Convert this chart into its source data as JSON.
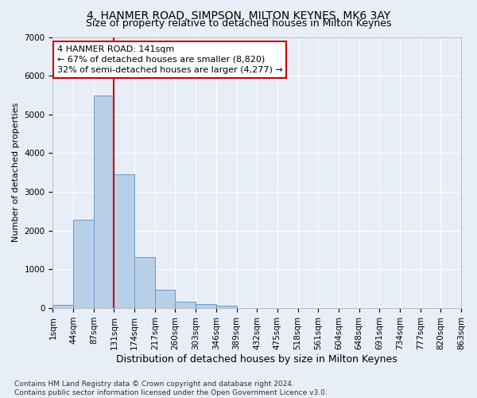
{
  "title": "4, HANMER ROAD, SIMPSON, MILTON KEYNES, MK6 3AY",
  "subtitle": "Size of property relative to detached houses in Milton Keynes",
  "xlabel": "Distribution of detached houses by size in Milton Keynes",
  "ylabel": "Number of detached properties",
  "bar_color": "#b8cfe8",
  "bar_edge_color": "#6699cc",
  "bar_values": [
    80,
    2280,
    5480,
    3450,
    1320,
    470,
    160,
    100,
    60,
    0,
    0,
    0,
    0,
    0,
    0,
    0,
    0,
    0,
    0,
    0
  ],
  "bin_labels": [
    "1sqm",
    "44sqm",
    "87sqm",
    "131sqm",
    "174sqm",
    "217sqm",
    "260sqm",
    "303sqm",
    "346sqm",
    "389sqm",
    "432sqm",
    "475sqm",
    "518sqm",
    "561sqm",
    "604sqm",
    "648sqm",
    "691sqm",
    "734sqm",
    "777sqm",
    "820sqm",
    "863sqm"
  ],
  "ylim": [
    0,
    7000
  ],
  "yticks": [
    0,
    1000,
    2000,
    3000,
    4000,
    5000,
    6000,
    7000
  ],
  "vline_x": 3,
  "vline_color": "#cc0000",
  "annotation_text": "4 HANMER ROAD: 141sqm\n← 67% of detached houses are smaller (8,820)\n32% of semi-detached houses are larger (4,277) →",
  "annotation_box_color": "#ffffff",
  "annotation_box_edge_color": "#cc0000",
  "footnote": "Contains HM Land Registry data © Crown copyright and database right 2024.\nContains public sector information licensed under the Open Government Licence v3.0.",
  "background_color": "#e8eef7",
  "plot_background": "#e8eef7",
  "grid_color": "#ffffff",
  "title_fontsize": 10,
  "subtitle_fontsize": 9,
  "xlabel_fontsize": 9,
  "ylabel_fontsize": 8,
  "tick_fontsize": 7.5,
  "footnote_fontsize": 6.5,
  "annotation_fontsize": 8
}
